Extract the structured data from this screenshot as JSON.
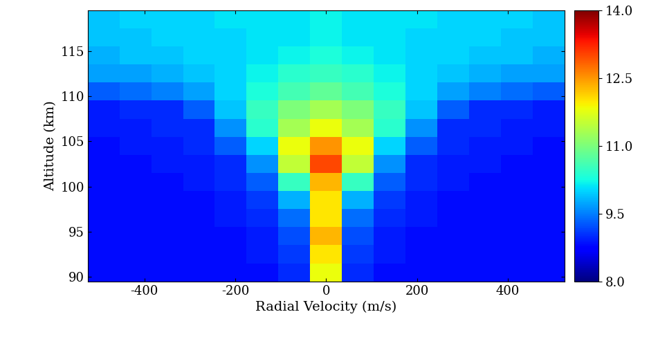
{
  "chart_data": {
    "type": "heatmap",
    "x_label": "Radial Velocity (m/s)",
    "y_label": "Altitude (km)",
    "x_edges": [
      -525,
      -455,
      -385,
      -315,
      -245,
      -175,
      -105,
      -35,
      35,
      105,
      175,
      245,
      315,
      385,
      455,
      525
    ],
    "y_edges": [
      89.5,
      91.5,
      93.5,
      95.5,
      97.5,
      99.5,
      101.5,
      103.5,
      105.5,
      107.5,
      109.5,
      111.5,
      113.5,
      115.5,
      117.5,
      119.5
    ],
    "cells": [
      [
        8.8,
        8.8,
        8.8,
        8.8,
        8.8,
        8.8,
        9.0,
        11.8,
        9.0,
        8.8,
        8.8,
        8.8,
        8.8,
        8.8,
        8.8
      ],
      [
        8.8,
        8.8,
        8.8,
        8.8,
        8.8,
        8.9,
        9.1,
        12.0,
        9.1,
        8.9,
        8.8,
        8.8,
        8.8,
        8.8,
        8.8
      ],
      [
        8.8,
        8.8,
        8.8,
        8.8,
        8.8,
        8.9,
        9.2,
        12.3,
        9.2,
        8.9,
        8.8,
        8.8,
        8.8,
        8.8,
        8.8
      ],
      [
        8.8,
        8.8,
        8.8,
        8.8,
        8.9,
        9.0,
        9.4,
        12.0,
        9.4,
        9.0,
        8.9,
        8.8,
        8.8,
        8.8,
        8.8
      ],
      [
        8.8,
        8.8,
        8.8,
        8.8,
        8.9,
        9.1,
        9.8,
        12.0,
        9.8,
        9.1,
        8.9,
        8.8,
        8.8,
        8.8,
        8.8
      ],
      [
        8.8,
        8.8,
        8.8,
        8.9,
        9.0,
        9.3,
        10.5,
        12.3,
        10.5,
        9.3,
        9.0,
        8.9,
        8.8,
        8.8,
        8.8
      ],
      [
        8.8,
        8.8,
        8.9,
        8.9,
        9.0,
        9.6,
        11.5,
        13.0,
        11.5,
        9.6,
        9.0,
        8.9,
        8.9,
        8.8,
        8.8
      ],
      [
        8.8,
        8.9,
        8.9,
        9.0,
        9.3,
        10.0,
        11.8,
        12.5,
        11.8,
        10.0,
        9.3,
        9.0,
        8.9,
        8.9,
        8.8
      ],
      [
        8.9,
        8.9,
        9.0,
        9.0,
        9.6,
        10.4,
        11.3,
        11.8,
        11.3,
        10.4,
        9.6,
        9.0,
        9.0,
        8.9,
        8.9
      ],
      [
        8.9,
        9.0,
        9.0,
        9.3,
        9.9,
        10.5,
        11.0,
        11.3,
        11.0,
        10.5,
        9.9,
        9.3,
        9.0,
        9.0,
        8.9
      ],
      [
        9.3,
        9.4,
        9.5,
        9.7,
        10.0,
        10.3,
        10.6,
        10.8,
        10.6,
        10.3,
        10.0,
        9.7,
        9.5,
        9.4,
        9.3
      ],
      [
        9.7,
        9.7,
        9.8,
        9.9,
        10.0,
        10.2,
        10.4,
        10.5,
        10.4,
        10.2,
        10.0,
        9.9,
        9.8,
        9.7,
        9.7
      ],
      [
        9.8,
        9.9,
        9.9,
        10.0,
        10.0,
        10.1,
        10.2,
        10.3,
        10.2,
        10.1,
        10.0,
        10.0,
        9.9,
        9.9,
        9.8
      ],
      [
        9.9,
        9.9,
        10.0,
        10.0,
        10.0,
        10.1,
        10.1,
        10.2,
        10.1,
        10.1,
        10.0,
        10.0,
        10.0,
        9.9,
        9.9
      ],
      [
        9.9,
        10.0,
        10.0,
        10.0,
        10.1,
        10.1,
        10.1,
        10.2,
        10.1,
        10.1,
        10.1,
        10.0,
        10.0,
        10.0,
        9.9
      ]
    ],
    "xlim": [
      -525,
      525
    ],
    "ylim": [
      89.5,
      119.5
    ],
    "xticks": [
      -400,
      -200,
      0,
      200,
      400
    ],
    "yticks": [
      90,
      95,
      100,
      105,
      110,
      115
    ],
    "colorbar_range": [
      8,
      14
    ],
    "colorbar_ticks": [
      {
        "value": 8,
        "label": "8.0"
      },
      {
        "value": 9.5,
        "label": "9.5"
      },
      {
        "value": 11,
        "label": "11.0"
      },
      {
        "value": 12.5,
        "label": "12.5"
      },
      {
        "value": 14,
        "label": "14.0"
      }
    ]
  }
}
